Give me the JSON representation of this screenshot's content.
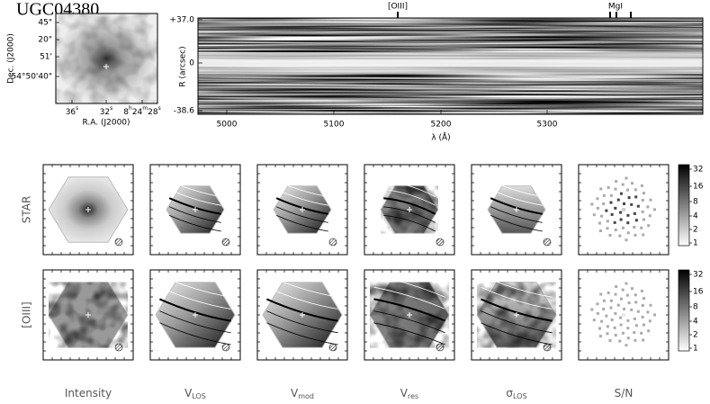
{
  "title": "UGC04380",
  "thumbnail": {
    "y_label": "Dec. (J2000)",
    "x_label": "R.A. (J2000)",
    "y_ticks": [
      "45\"",
      "20\"",
      "51'",
      "54°50'40\""
    ],
    "x_ticks": [
      [
        "36",
        "s"
      ],
      [
        "32",
        "s"
      ],
      [
        "8",
        "h",
        "24",
        "m",
        "28",
        "s"
      ]
    ]
  },
  "spectrum": {
    "y_label": "R (arcsec)",
    "y_ticks": [
      "+37.0",
      "0",
      "-38.6"
    ],
    "x_ticks": [
      "5000",
      "5100",
      "5200",
      "5300"
    ],
    "x_label": "λ (Å)",
    "line_markers": [
      "[OIII]",
      "MgI"
    ]
  },
  "maps": {
    "rows": [
      "STAR",
      "[OIII]"
    ],
    "columns": [
      {
        "text": "Intensity"
      },
      {
        "text": "V",
        "sub": "LOS"
      },
      {
        "text": "V",
        "sub": "mod"
      },
      {
        "text": "V",
        "sub": "res"
      },
      {
        "text": "σ",
        "sub": "LOS"
      },
      {
        "text": "S/N"
      }
    ],
    "colorbar_ticks": [
      "32",
      "16",
      "8",
      "4",
      "2",
      "1"
    ]
  }
}
